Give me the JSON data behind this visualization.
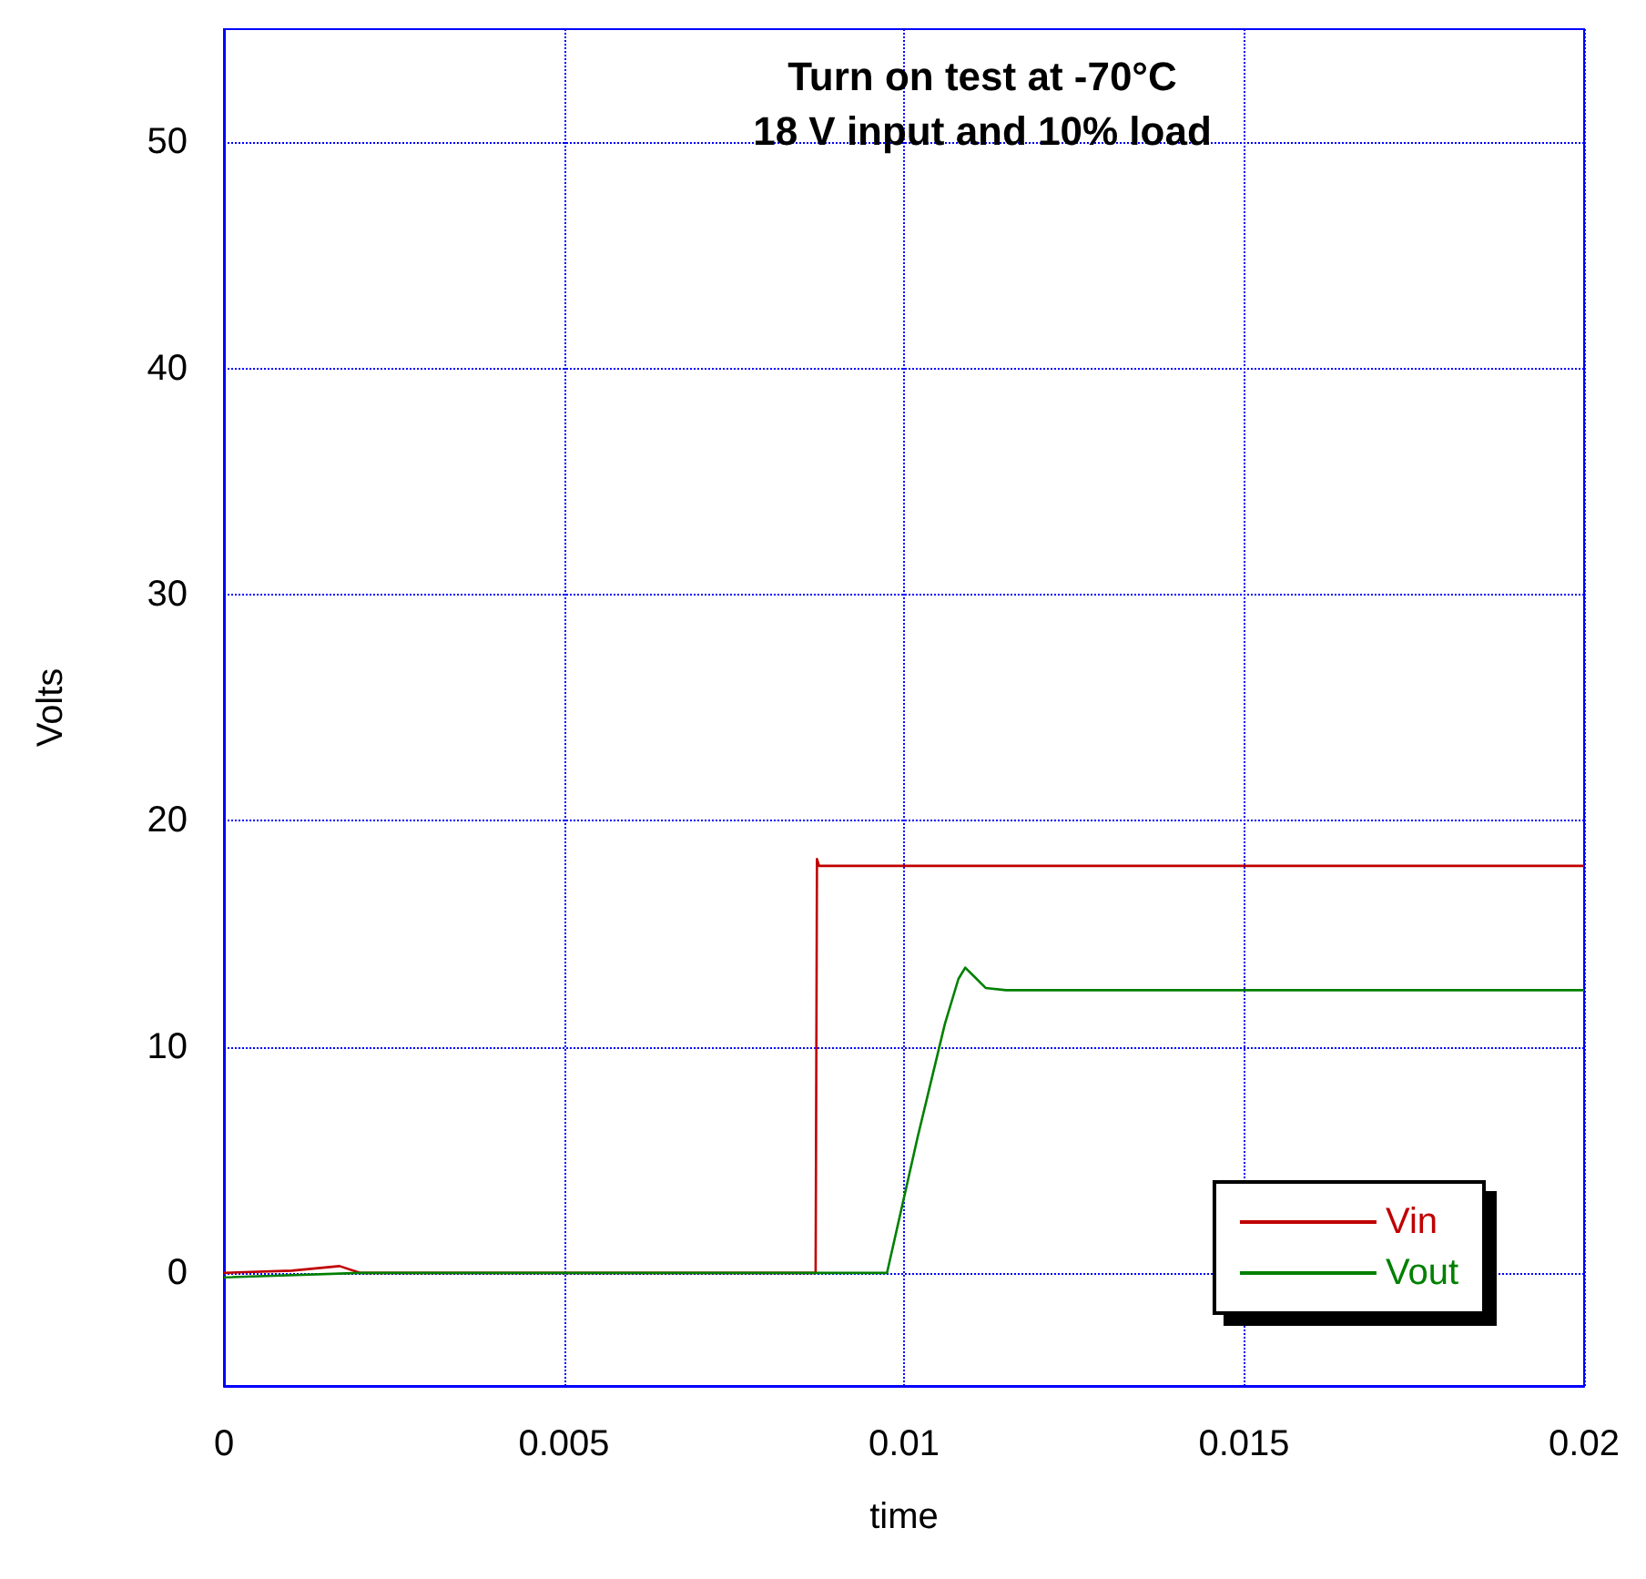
{
  "chart_data": {
    "type": "line",
    "title": "Turn on test at -70°C",
    "subtitle": "18 V input and 10% load",
    "xlabel": "time",
    "ylabel": "Volts",
    "series": [
      {
        "name": "Vin",
        "color": "#c00000",
        "x": [
          0,
          0.001,
          0.0017,
          0.002,
          0.004,
          0.006,
          0.008,
          0.0086,
          0.0087,
          0.00872,
          0.00875,
          0.009,
          0.0095,
          0.01,
          0.012,
          0.014,
          0.016,
          0.018,
          0.02
        ],
        "values": [
          0,
          0.1,
          0.3,
          0,
          0,
          0,
          0,
          0,
          0,
          18.3,
          18,
          18,
          18,
          18,
          18,
          18,
          18,
          18,
          18
        ]
      },
      {
        "name": "Vout",
        "color": "#008000",
        "x": [
          0,
          0.002,
          0.004,
          0.006,
          0.008,
          0.0097,
          0.00975,
          0.0102,
          0.0106,
          0.0108,
          0.0109,
          0.011,
          0.0112,
          0.0115,
          0.012,
          0.014,
          0.016,
          0.018,
          0.02
        ],
        "values": [
          -0.2,
          0,
          0,
          0,
          0,
          0,
          0,
          6,
          11,
          13,
          13.5,
          13.2,
          12.6,
          12.5,
          12.5,
          12.5,
          12.5,
          12.5,
          12.5
        ]
      }
    ],
    "xlim": [
      0,
      0.02
    ],
    "xticks": [
      0,
      0.005,
      0.01,
      0.015,
      0.02
    ],
    "ylim": [
      -5,
      55
    ],
    "yticks": [
      0,
      10,
      20,
      30,
      40,
      50
    ],
    "grid": true,
    "legend": "bottom right",
    "marker": "none",
    "line_style": "solid"
  }
}
